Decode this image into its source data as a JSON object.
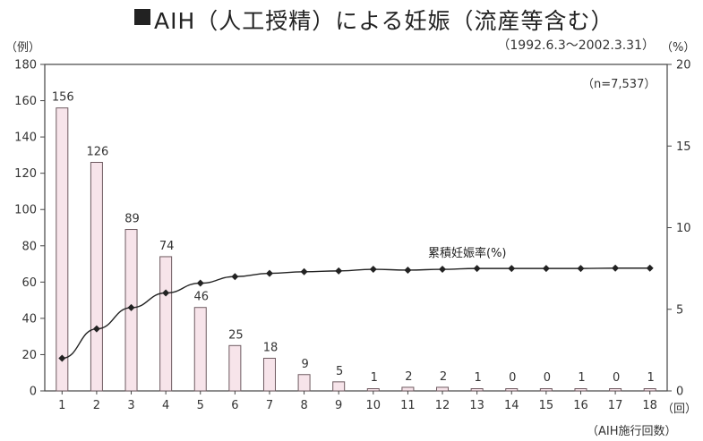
{
  "chart_data": {
    "type": "bar",
    "title": "AIH（人工授精）による妊娠（流産等含む）",
    "subtitle": "（1992.6.3〜2002.3.31）",
    "y_left_label": "（例）",
    "y_right_label": "（%）",
    "x_unit_label": "（回）",
    "x_axis_label": "（AIH施行回数）",
    "annotation": "（n=7,537）",
    "ylim_left": [
      0,
      180
    ],
    "ylim_right": [
      0,
      20
    ],
    "y_left_ticks": [
      "0",
      "20",
      "40",
      "60",
      "80",
      "100",
      "120",
      "140",
      "160",
      "180"
    ],
    "y_right_ticks": [
      "0",
      "5",
      "10",
      "15",
      "20"
    ],
    "categories": [
      "1",
      "2",
      "3",
      "4",
      "5",
      "6",
      "7",
      "8",
      "9",
      "10",
      "11",
      "12",
      "13",
      "14",
      "15",
      "16",
      "17",
      "18"
    ],
    "bar_values": [
      156,
      126,
      89,
      74,
      46,
      25,
      18,
      9,
      5,
      1,
      2,
      2,
      1,
      0,
      0,
      1,
      0,
      1
    ],
    "bar_labels": [
      "156",
      "126",
      "89",
      "74",
      "46",
      "25",
      "18",
      "9",
      "5",
      "1",
      "2",
      "2",
      "1",
      "0",
      "0",
      "1",
      "0",
      "1"
    ],
    "line_series": {
      "name": "累積妊娠率(%)",
      "values": [
        2.0,
        3.8,
        5.1,
        6.0,
        6.6,
        7.0,
        7.2,
        7.3,
        7.35,
        7.45,
        7.4,
        7.45,
        7.5,
        7.5,
        7.5,
        7.5,
        7.52,
        7.52
      ]
    },
    "grid": false,
    "colors": {
      "bar_fill": "#f7e4ea",
      "bar_stroke": "#6e5a60",
      "line": "#222222",
      "axis": "#444444"
    }
  }
}
